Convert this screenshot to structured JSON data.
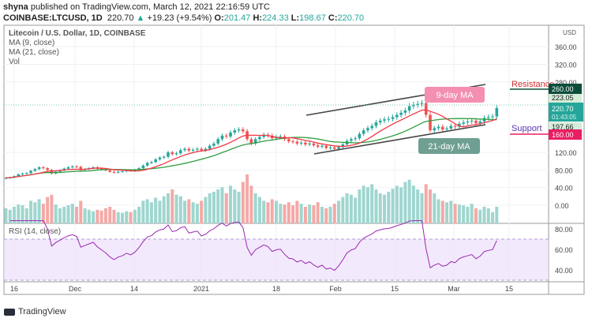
{
  "header": {
    "publisher": "shyna",
    "published_text": "published on TradingView.com, March 12, 2021 22:16:59 UTC",
    "symbol": "COINBASE:LTCUSD, 1D",
    "last": "220.70",
    "change": "+19.23 (+9.54%)",
    "o": "201.47",
    "h": "224.33",
    "l": "198.67",
    "c": "220.70"
  },
  "legend": {
    "title": "Litecoin / U.S. Dollar, 1D, COINBASE",
    "ma9": "MA (9, close)",
    "ma21": "MA (21, close)",
    "vol": "Vol",
    "rsi": "RSI (14, close)"
  },
  "annotations": {
    "ma9_label": "9-day MA",
    "ma21_label": "21-day MA",
    "resistance": "Resistance",
    "support": "Support"
  },
  "price_labels": {
    "resistance": "260.00",
    "high_line": "223.05",
    "last": "220.70",
    "countdown": "01:43:05",
    "low_line": "197.66",
    "support": "160.00",
    "currency": "USD"
  },
  "colors": {
    "up": "#26a69a",
    "down": "#ef5350",
    "ma9": "#f23645",
    "ma21": "#2e9e3e",
    "rsi": "#9c27b0",
    "resistance": "#0b4d3a",
    "support": "#e91e63"
  },
  "brand": "TradingView",
  "chart_data": {
    "type": "candlestick",
    "start_date": "2020-11-14",
    "interval": "1D",
    "price_ticks": [
      "0.00",
      "40.00",
      "80.00",
      "120.00",
      "280.00",
      "320.00",
      "360.00"
    ],
    "rsi_ticks": [
      "40.00",
      "60.00",
      "80.00"
    ],
    "x_ticks": [
      "16",
      "Dec",
      "14",
      "2021",
      "18",
      "Feb",
      "15",
      "Mar",
      "15"
    ],
    "ylim": [
      -40,
      400
    ],
    "close": [
      62,
      63,
      66,
      70,
      72,
      73,
      78,
      82,
      86,
      84,
      80,
      72,
      76,
      79,
      83,
      86,
      88,
      87,
      80,
      82,
      84,
      86,
      83,
      81,
      79,
      76,
      74,
      76,
      77,
      79,
      78,
      80,
      84,
      90,
      96,
      98,
      104,
      108,
      110,
      120,
      116,
      118,
      125,
      128,
      124,
      126,
      128,
      125,
      128,
      135,
      140,
      150,
      158,
      156,
      165,
      170,
      172,
      168,
      150,
      140,
      150,
      155,
      160,
      158,
      152,
      155,
      156,
      150,
      145,
      144,
      140,
      142,
      138,
      140,
      136,
      133,
      135,
      130,
      131,
      128,
      132,
      138,
      146,
      150,
      152,
      162,
      170,
      175,
      180,
      188,
      192,
      195,
      196,
      200,
      205,
      210,
      215,
      225,
      228,
      230,
      232,
      205,
      170,
      175,
      178,
      172,
      174,
      180,
      178,
      185,
      188,
      190,
      192,
      186,
      190,
      198,
      200,
      201.47,
      220.7
    ],
    "volume": [
      20,
      18,
      22,
      25,
      24,
      20,
      30,
      28,
      32,
      26,
      35,
      38,
      25,
      20,
      22,
      24,
      26,
      22,
      30,
      20,
      18,
      16,
      18,
      17,
      20,
      22,
      18,
      15,
      14,
      16,
      15,
      18,
      22,
      30,
      32,
      28,
      34,
      30,
      36,
      40,
      45,
      38,
      36,
      30,
      32,
      28,
      26,
      30,
      35,
      40,
      42,
      45,
      48,
      40,
      50,
      45,
      42,
      55,
      65,
      50,
      40,
      35,
      30,
      28,
      32,
      30,
      26,
      25,
      28,
      24,
      30,
      26,
      22,
      25,
      24,
      28,
      22,
      20,
      22,
      26,
      30,
      35,
      40,
      38,
      34,
      45,
      50,
      48,
      52,
      45,
      40,
      38,
      42,
      46,
      50,
      48,
      55,
      58,
      50,
      45,
      40,
      52,
      45,
      40,
      32,
      30,
      28,
      30,
      26,
      25,
      24,
      22,
      26,
      20,
      18,
      22,
      20,
      15,
      22
    ]
  }
}
